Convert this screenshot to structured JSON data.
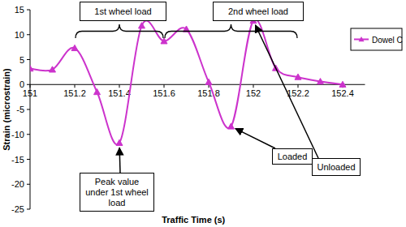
{
  "chart_data": {
    "type": "line",
    "x": [
      151,
      151.1,
      151.2,
      151.3,
      151.4,
      151.5,
      151.6,
      151.7,
      151.8,
      151.9,
      152,
      152.1,
      152.2,
      152.3,
      152.4
    ],
    "series": [
      {
        "name": "Dowel C",
        "color": "#cc33cc",
        "marker": "triangle",
        "values": [
          3.2,
          3.0,
          7.3,
          -1.5,
          -11.7,
          11.8,
          8.7,
          11.1,
          0.5,
          -8.4,
          12.8,
          3.3,
          1.5,
          0.6,
          0.0
        ]
      }
    ],
    "xlabel": "Traffic Time (s)",
    "ylabel": "Strain (microstrain)",
    "xlim": [
      151,
      152.5
    ],
    "ylim": [
      -25,
      15
    ],
    "xticks": [
      151,
      151.2,
      151.4,
      151.6,
      151.8,
      152,
      152.2,
      152.4
    ],
    "yticks": [
      -25,
      -20,
      -15,
      -10,
      -5,
      0,
      5,
      10,
      15
    ],
    "grid": false,
    "legend": "right",
    "annotations": [
      {
        "text": "1st wheel load",
        "x": [
          151.2,
          151.6
        ]
      },
      {
        "text": "2nd wheel load",
        "x": [
          151.6,
          152.2
        ]
      },
      {
        "text": "Peak value under 1st wheel load",
        "x": 151.4,
        "y": -11.7
      },
      {
        "text": "Loaded",
        "x": 151.9,
        "y": -8.4
      },
      {
        "text": "Unloaded",
        "x": 152,
        "y": 12.8
      }
    ]
  }
}
